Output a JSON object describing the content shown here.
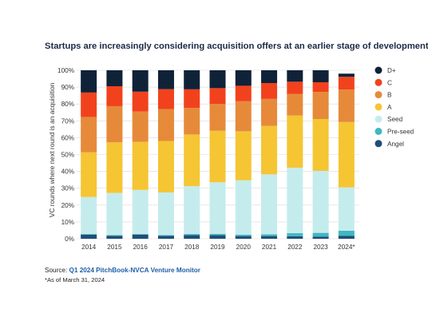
{
  "chart_data": {
    "type": "bar",
    "stacked": true,
    "title": "Startups are increasingly considering acquisition offers  at an earlier stage of development",
    "ylabel": "VC rounds where next round is an acquisition",
    "xlabel": "",
    "ylim": [
      0,
      100
    ],
    "yticks": [
      "0%",
      "10%",
      "20%",
      "30%",
      "40%",
      "50%",
      "60%",
      "70%",
      "80%",
      "90%",
      "100%"
    ],
    "categories": [
      "2014",
      "2015",
      "2016",
      "2017",
      "2018",
      "2019",
      "2020",
      "2021",
      "2022",
      "2023",
      "2024*"
    ],
    "series": [
      {
        "name": "Angel",
        "color": "#1f4e79",
        "values": [
          2.5,
          1.8,
          2.5,
          1.8,
          2.2,
          2.1,
          1.6,
          1.6,
          1.5,
          1.3,
          1.8
        ]
      },
      {
        "name": "Pre-seed",
        "color": "#3fb8c1",
        "values": [
          0.3,
          0.4,
          0.3,
          0.4,
          0.6,
          0.8,
          0.8,
          1.0,
          1.8,
          2.2,
          3.0
        ]
      },
      {
        "name": "Seed",
        "color": "#c5eced",
        "values": [
          22.0,
          25.0,
          26.2,
          25.3,
          28.4,
          30.6,
          32.3,
          35.6,
          38.9,
          36.8,
          25.7
        ]
      },
      {
        "name": "A",
        "color": "#f5c533",
        "values": [
          26.5,
          30.0,
          28.5,
          30.5,
          30.7,
          30.6,
          29.1,
          28.8,
          31.0,
          30.8,
          38.8
        ]
      },
      {
        "name": "B",
        "color": "#e68a3a",
        "values": [
          21.0,
          21.5,
          18.0,
          19.0,
          15.8,
          15.9,
          17.8,
          16.0,
          12.8,
          16.0,
          19.3
        ]
      },
      {
        "name": "C",
        "color": "#f2421d",
        "values": [
          14.5,
          11.8,
          11.8,
          11.8,
          11.0,
          9.4,
          9.2,
          9.4,
          7.2,
          5.8,
          7.5
        ]
      },
      {
        "name": "D+",
        "color": "#0f2238",
        "values": [
          13.2,
          9.5,
          12.7,
          11.2,
          11.3,
          10.6,
          9.2,
          7.6,
          6.8,
          7.1,
          1.9
        ]
      }
    ],
    "legend_order": [
      "D+",
      "C",
      "B",
      "A",
      "Seed",
      "Pre-seed",
      "Angel"
    ],
    "legend_position": "right",
    "grid": true
  },
  "source": {
    "prefix": "Source: ",
    "link_text": "Q1 2024 PitchBook-NVCA Venture Monitor"
  },
  "footnote": "*As of March 31, 2024"
}
